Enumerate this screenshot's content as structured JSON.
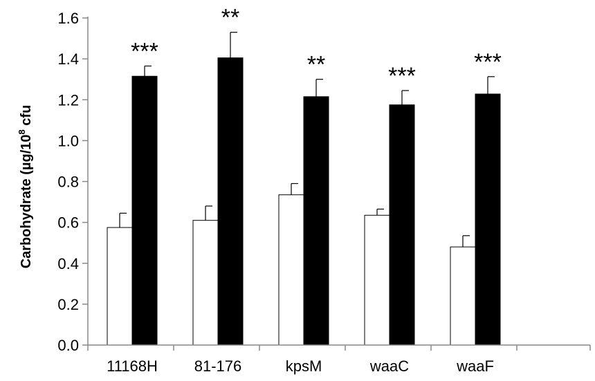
{
  "chart_data": {
    "type": "bar",
    "categories": [
      "11168H",
      "81-176",
      "kpsM",
      "waaC",
      "waaF"
    ],
    "series": [
      {
        "fill": "#ffffff",
        "values": [
          0.575,
          0.61,
          0.735,
          0.635,
          0.48
        ],
        "errors": [
          0.07,
          0.07,
          0.055,
          0.03,
          0.055
        ]
      },
      {
        "fill": "#000000",
        "values": [
          1.315,
          1.405,
          1.215,
          1.175,
          1.228
        ],
        "errors": [
          0.05,
          0.125,
          0.085,
          0.07,
          0.085
        ]
      }
    ],
    "significance": [
      "***",
      "**",
      "**",
      "***",
      "***"
    ],
    "ylabel_main": "Carbohydrate (µg/10",
    "ylabel_sup": "8",
    "ylabel_tail": " cfu",
    "ylim": [
      0,
      1.6
    ],
    "yticks": [
      "0.0",
      "0.2",
      "0.4",
      "0.6",
      "0.8",
      "1.0",
      "1.2",
      "1.4",
      "1.6"
    ],
    "grid": false,
    "legend": "none"
  }
}
